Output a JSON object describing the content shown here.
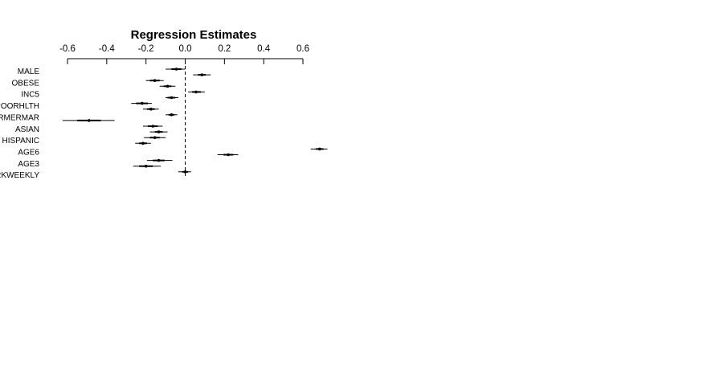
{
  "chart_data": {
    "type": "forest",
    "title": "Regression Estimates",
    "xlabel": "",
    "ylabel": "",
    "xlim": [
      -0.6,
      0.6
    ],
    "x_ticks": [
      "-0.6",
      "-0.4",
      "-0.2",
      "0.0",
      "0.2",
      "0.4",
      "0.6"
    ],
    "axis_position": "top",
    "reference_line": {
      "x": 0.0,
      "style": "dashed"
    },
    "grid": false,
    "legend": "none",
    "row_labels": [
      "MALE",
      "OBESE",
      "INC5",
      "POORHLTH",
      "FORMERMAR",
      "ASIAN",
      "HISPANIC",
      "AGE6",
      "AGE3",
      "WORKWEEKLY"
    ],
    "points": [
      {
        "estimate": -0.045,
        "inner": [
          -0.07,
          -0.02
        ],
        "outer": [
          -0.1,
          0.0
        ]
      },
      {
        "estimate": 0.085,
        "inner": [
          0.065,
          0.105
        ],
        "outer": [
          0.04,
          0.13
        ]
      },
      {
        "estimate": -0.155,
        "inner": [
          -0.18,
          -0.13
        ],
        "outer": [
          -0.2,
          -0.11
        ]
      },
      {
        "estimate": -0.09,
        "inner": [
          -0.11,
          -0.07
        ],
        "outer": [
          -0.13,
          -0.05
        ]
      },
      {
        "estimate": 0.055,
        "inner": [
          0.035,
          0.08
        ],
        "outer": [
          0.015,
          0.1
        ]
      },
      {
        "estimate": -0.07,
        "inner": [
          -0.09,
          -0.05
        ],
        "outer": [
          -0.1,
          -0.035
        ]
      },
      {
        "estimate": -0.22,
        "inner": [
          -0.25,
          -0.19
        ],
        "outer": [
          -0.275,
          -0.17
        ]
      },
      {
        "estimate": -0.175,
        "inner": [
          -0.195,
          -0.155
        ],
        "outer": [
          -0.215,
          -0.135
        ]
      },
      {
        "estimate": -0.07,
        "inner": [
          -0.085,
          -0.055
        ],
        "outer": [
          -0.1,
          -0.04
        ]
      },
      {
        "estimate": -0.49,
        "inner": [
          -0.55,
          -0.43
        ],
        "outer": [
          -0.625,
          -0.36
        ]
      },
      {
        "estimate": -0.165,
        "inner": [
          -0.19,
          -0.14
        ],
        "outer": [
          -0.215,
          -0.115
        ]
      },
      {
        "estimate": -0.135,
        "inner": [
          -0.155,
          -0.115
        ],
        "outer": [
          -0.18,
          -0.09
        ]
      },
      {
        "estimate": -0.155,
        "inner": [
          -0.18,
          -0.13
        ],
        "outer": [
          -0.21,
          -0.1
        ]
      },
      {
        "estimate": -0.215,
        "inner": [
          -0.235,
          -0.195
        ],
        "outer": [
          -0.255,
          -0.175
        ]
      },
      {
        "estimate": 0.685,
        "inner": [
          0.665,
          0.705
        ],
        "outer": [
          0.64,
          0.725
        ]
      },
      {
        "estimate": 0.22,
        "inner": [
          0.195,
          0.245
        ],
        "outer": [
          0.165,
          0.27
        ]
      },
      {
        "estimate": -0.135,
        "inner": [
          -0.165,
          -0.105
        ],
        "outer": [
          -0.195,
          -0.065
        ]
      },
      {
        "estimate": -0.2,
        "inner": [
          -0.235,
          -0.165
        ],
        "outer": [
          -0.265,
          -0.125
        ]
      },
      {
        "estimate": 0.0,
        "inner": [
          -0.015,
          0.015
        ],
        "outer": [
          -0.035,
          0.03
        ]
      }
    ]
  }
}
